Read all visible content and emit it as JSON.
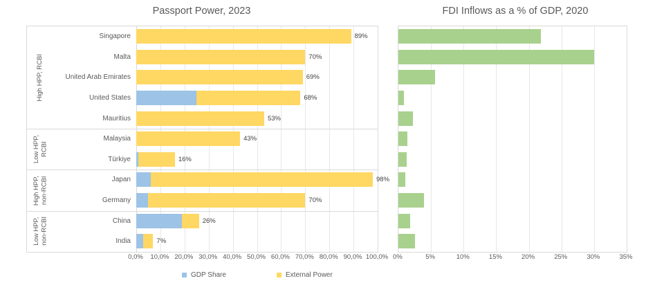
{
  "chart_data": [
    {
      "type": "bar",
      "orientation": "horizontal",
      "stacked": true,
      "title": "Passport Power, 2023",
      "categories": [
        "Singapore",
        "Malta",
        "United Arab Emirates",
        "United States",
        "Mauritius",
        "Malaysia",
        "Türkiye",
        "Japan",
        "Germany",
        "China",
        "India"
      ],
      "groups": [
        {
          "label": "High HPP, RCBI",
          "lines": [
            "High HPP, RCBI"
          ],
          "start": 0,
          "end": 4
        },
        {
          "label": "Low HPP, RCBI",
          "lines": [
            "Low HPP,",
            "RCBI"
          ],
          "start": 5,
          "end": 6
        },
        {
          "label": "High HPP, non-RCBI",
          "lines": [
            "High HPP,",
            "non-RCBI"
          ],
          "start": 7,
          "end": 8
        },
        {
          "label": "Low HPP, non-RCBI",
          "lines": [
            "Low HPP,",
            "non-RCBI"
          ],
          "start": 9,
          "end": 10
        }
      ],
      "series": [
        {
          "name": "GDP Share",
          "color": "#9DC3E6",
          "values": [
            0,
            0,
            0,
            25,
            0,
            0,
            1,
            6,
            5,
            19,
            3
          ]
        },
        {
          "name": "External Power",
          "color": "#FFD763",
          "values": [
            89,
            70,
            69,
            43,
            53,
            43,
            15,
            92,
            65,
            7,
            4
          ]
        }
      ],
      "total_labels": [
        "89%",
        "70%",
        "69%",
        "68%",
        "53%",
        "43%",
        "16%",
        "98%",
        "70%",
        "26%",
        "7%"
      ],
      "xlim": [
        0,
        100
      ],
      "x_ticks": [
        "0,0%",
        "10,0%",
        "20,0%",
        "30,0%",
        "40,0%",
        "50,0%",
        "60,0%",
        "70,0%",
        "80,0%",
        "90,0%",
        "100,0%"
      ],
      "legend_position": "bottom",
      "grid": true
    },
    {
      "type": "bar",
      "orientation": "horizontal",
      "title": "FDI Inflows as a % of GDP, 2020",
      "categories": [
        "Singapore",
        "Malta",
        "United Arab Emirates",
        "United States",
        "Mauritius",
        "Malaysia",
        "Türkiye",
        "Japan",
        "Germany",
        "China",
        "India"
      ],
      "values": [
        21.9,
        30.0,
        5.6,
        0.9,
        2.2,
        1.4,
        1.3,
        1.1,
        3.9,
        1.8,
        2.5
      ],
      "color": "#A9D18E",
      "xlim": [
        0,
        35
      ],
      "x_ticks": [
        "0%",
        "5%",
        "10%",
        "15%",
        "20%",
        "25%",
        "30%",
        "35%"
      ],
      "grid": true
    }
  ],
  "colors": {
    "gdp_share": "#9DC3E6",
    "external_power": "#FFD763",
    "fdi_bar": "#A9D18E",
    "gridline": "#E7E7E7",
    "border": "#D9D9D9",
    "text": "#595959",
    "data_label": "#404040"
  }
}
